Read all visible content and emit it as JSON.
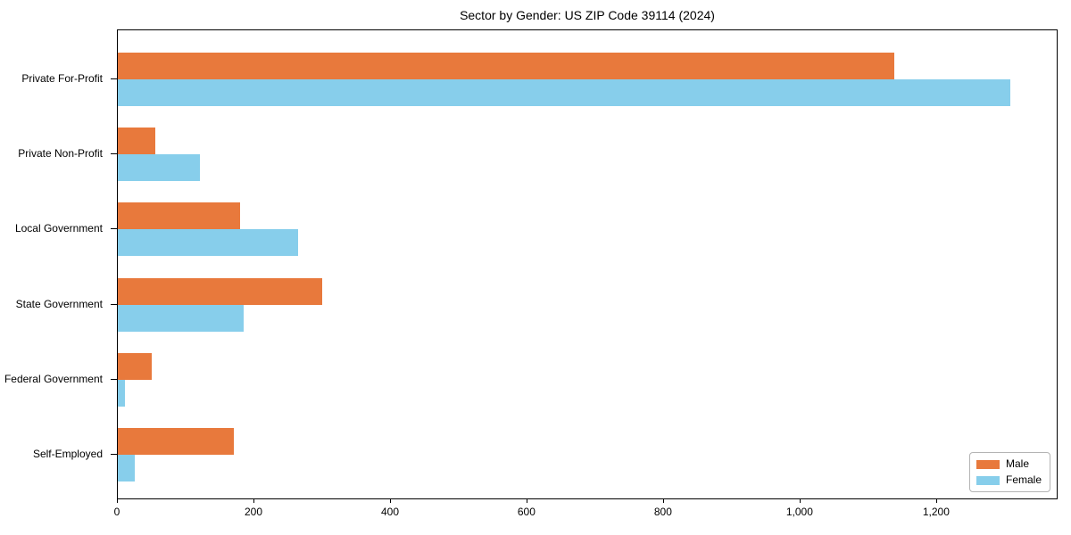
{
  "chart_data": {
    "type": "bar",
    "orientation": "horizontal",
    "title": "Sector by Gender: US ZIP Code 39114 (2024)",
    "categories": [
      "Private For-Profit",
      "Private Non-Profit",
      "Local Government",
      "State Government",
      "Federal Government",
      "Self-Employed"
    ],
    "series": [
      {
        "name": "Male",
        "color": "#E8793C",
        "values": [
          1140,
          55,
          180,
          300,
          50,
          170
        ]
      },
      {
        "name": "Female",
        "color": "#87CEEB",
        "values": [
          1310,
          120,
          265,
          185,
          10,
          25
        ]
      }
    ],
    "xlabel": "",
    "ylabel": "",
    "xlim": [
      0,
      1378
    ],
    "xticks": [
      0,
      200,
      400,
      600,
      800,
      1000,
      1200
    ],
    "xtick_labels": [
      "0",
      "200",
      "400",
      "600",
      "800",
      "1,000",
      "1,200"
    ],
    "grid": false,
    "legend": {
      "position": "lower right",
      "entries": [
        "Male",
        "Female"
      ]
    },
    "colors": {
      "male": "#E8793C",
      "female": "#87CEEB",
      "spine": "#000000",
      "background": "#ffffff"
    }
  }
}
